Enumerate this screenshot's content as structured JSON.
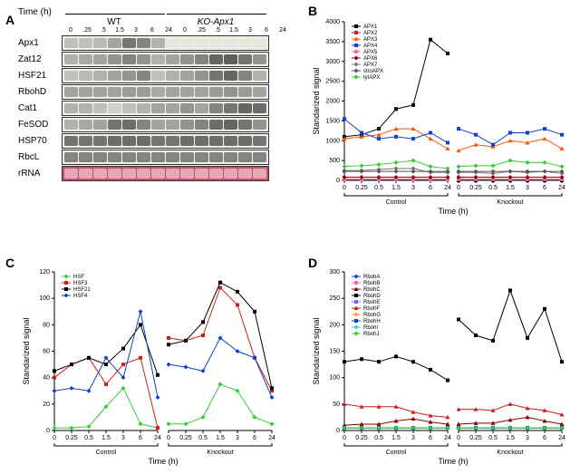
{
  "panelA": {
    "label": "A",
    "time_header": "Time (h)",
    "groups": [
      "WT",
      "KO-Apx1"
    ],
    "time_points": [
      "0",
      ".25",
      ".5",
      "1.5",
      "3",
      "6",
      "24",
      "0",
      ".25",
      ".5",
      "1.5",
      "3",
      "6",
      "24"
    ],
    "genes": [
      {
        "name": "Apx1",
        "og": [
          0.3,
          0.3,
          0.35,
          0.5,
          0.8,
          0.7,
          0.4,
          0.05,
          0.05,
          0.05,
          0.05,
          0.05,
          0.05,
          0.05
        ]
      },
      {
        "name": "Zat12",
        "og": [
          0.4,
          0.45,
          0.5,
          0.6,
          0.7,
          0.6,
          0.4,
          0.5,
          0.6,
          0.7,
          0.9,
          0.95,
          0.8,
          0.6
        ]
      },
      {
        "name": "HSF21",
        "og": [
          0.3,
          0.35,
          0.4,
          0.5,
          0.6,
          0.7,
          0.3,
          0.4,
          0.5,
          0.6,
          0.8,
          0.9,
          0.7,
          0.4
        ]
      },
      {
        "name": "RbohD",
        "og": [
          0.5,
          0.5,
          0.5,
          0.5,
          0.55,
          0.55,
          0.45,
          0.5,
          0.5,
          0.5,
          0.55,
          0.6,
          0.55,
          0.5
        ]
      },
      {
        "name": "Cat1",
        "og": [
          0.4,
          0.4,
          0.3,
          0.2,
          0.3,
          0.4,
          0.5,
          0.5,
          0.6,
          0.5,
          0.7,
          0.8,
          0.9,
          0.85
        ]
      },
      {
        "name": "FeSOD",
        "og": [
          0.4,
          0.45,
          0.5,
          0.8,
          0.85,
          0.7,
          0.5,
          0.5,
          0.6,
          0.7,
          0.85,
          0.9,
          0.8,
          0.6
        ]
      },
      {
        "name": "HSP70",
        "og": [
          0.8,
          0.8,
          0.8,
          0.85,
          0.85,
          0.85,
          0.8,
          0.8,
          0.85,
          0.85,
          0.85,
          0.85,
          0.85,
          0.8
        ]
      },
      {
        "name": "RbcL",
        "og": [
          0.7,
          0.7,
          0.7,
          0.7,
          0.7,
          0.7,
          0.7,
          0.7,
          0.7,
          0.7,
          0.7,
          0.7,
          0.7,
          0.7
        ]
      },
      {
        "name": "rRNA",
        "og": [
          0.7,
          0.7,
          0.7,
          0.7,
          0.7,
          0.7,
          0.7,
          0.7,
          0.7,
          0.7,
          0.7,
          0.7,
          0.7,
          0.7
        ],
        "rrna": true
      }
    ]
  },
  "panelB": {
    "label": "B",
    "ylabel": "Standarized signal",
    "xlabel": "Time (h)",
    "ylim": [
      0,
      4000
    ],
    "ytick_step": 500,
    "x_categories": [
      "0",
      "0.25",
      "0.5",
      "1.5",
      "3",
      "6",
      "24"
    ],
    "groups": [
      "Control",
      "Knockout"
    ],
    "series": [
      {
        "name": "APX1",
        "color": "#000000",
        "marker": "square",
        "control": [
          1100,
          1150,
          1300,
          1800,
          1900,
          3550,
          3200
        ],
        "knockout": [
          0,
          0,
          0,
          0,
          0,
          0,
          0
        ]
      },
      {
        "name": "APX2",
        "color": "#cc2020",
        "marker": "square",
        "control": [
          30,
          30,
          30,
          30,
          30,
          30,
          30
        ],
        "knockout": [
          30,
          30,
          30,
          30,
          30,
          30,
          30
        ]
      },
      {
        "name": "APX3",
        "color": "#ff5500",
        "marker": "triangle",
        "control": [
          1050,
          1100,
          1150,
          1300,
          1300,
          1050,
          800
        ],
        "knockout": [
          750,
          900,
          850,
          1000,
          950,
          1050,
          800
        ]
      },
      {
        "name": "APX4",
        "color": "#1040cc",
        "marker": "square",
        "control": [
          1550,
          1200,
          1050,
          1100,
          1050,
          1200,
          950
        ],
        "knockout": [
          1300,
          1150,
          900,
          1200,
          1200,
          1300,
          1150
        ]
      },
      {
        "name": "APX5",
        "color": "#ff66aa",
        "marker": "square",
        "control": [
          30,
          30,
          30,
          30,
          30,
          30,
          30
        ],
        "knockout": [
          30,
          30,
          30,
          30,
          30,
          30,
          30
        ]
      },
      {
        "name": "APX6",
        "color": "#880000",
        "marker": "diamond",
        "control": [
          80,
          80,
          80,
          80,
          80,
          80,
          80
        ],
        "knockout": [
          80,
          80,
          80,
          80,
          80,
          80,
          80
        ]
      },
      {
        "name": "APX7",
        "color": "#777777",
        "marker": "diamond",
        "control": [
          250,
          250,
          275,
          300,
          300,
          200,
          200
        ],
        "knockout": [
          200,
          200,
          175,
          225,
          200,
          225,
          175
        ]
      },
      {
        "name": "stroAPX",
        "color": "#555555",
        "marker": "diamond",
        "control": [
          225,
          225,
          225,
          225,
          225,
          225,
          225
        ],
        "knockout": [
          225,
          225,
          225,
          225,
          225,
          225,
          225
        ]
      },
      {
        "name": "tyIAPX",
        "color": "#33cc33",
        "marker": "diamond",
        "control": [
          350,
          370,
          400,
          450,
          500,
          350,
          300
        ],
        "knockout": [
          350,
          370,
          370,
          500,
          450,
          450,
          350
        ]
      }
    ]
  },
  "panelC": {
    "label": "C",
    "ylabel": "Standarized signal",
    "xlabel": "Time (h)",
    "ylim": [
      0,
      120
    ],
    "ytick_step": 20,
    "x_categories": [
      "0",
      "0.25",
      "0.5",
      "1.5",
      "3",
      "6",
      "24"
    ],
    "groups": [
      "Control",
      "Knockout"
    ],
    "series": [
      {
        "name": "HSF",
        "color": "#33cc33",
        "marker": "diamond",
        "control": [
          2,
          2,
          3,
          18,
          32,
          5,
          2
        ],
        "knockout": [
          5,
          5,
          10,
          35,
          30,
          10,
          5
        ]
      },
      {
        "name": "HSF3",
        "color": "#cc2020",
        "marker": "square",
        "control": [
          40,
          50,
          55,
          35,
          50,
          55,
          2
        ],
        "knockout": [
          70,
          68,
          72,
          108,
          95,
          55,
          30
        ]
      },
      {
        "name": "HSF21",
        "color": "#000000",
        "marker": "square",
        "control": [
          45,
          50,
          55,
          50,
          62,
          80,
          42
        ],
        "knockout": [
          65,
          68,
          82,
          112,
          105,
          90,
          32
        ]
      },
      {
        "name": "HSF4",
        "color": "#1040cc",
        "marker": "diamond",
        "control": [
          30,
          32,
          30,
          55,
          40,
          90,
          25
        ],
        "knockout": [
          50,
          48,
          45,
          70,
          60,
          55,
          25
        ]
      }
    ]
  },
  "panelD": {
    "label": "D",
    "ylabel": "Standarized signal",
    "xlabel": "Time (h)",
    "ylim": [
      0,
      300
    ],
    "ytick_step": 50,
    "x_categories": [
      "0",
      "0.25",
      "0.5",
      "1.5",
      "3",
      "6",
      "24"
    ],
    "groups": [
      "Control",
      "Knockout"
    ],
    "series": [
      {
        "name": "RbohA",
        "color": "#1040cc",
        "marker": "diamond",
        "control": [
          5,
          5,
          5,
          5,
          5,
          5,
          5
        ],
        "knockout": [
          5,
          5,
          5,
          5,
          5,
          5,
          5
        ]
      },
      {
        "name": "RbohB",
        "color": "#ff66cc",
        "marker": "square",
        "control": [
          5,
          5,
          5,
          5,
          5,
          5,
          5
        ],
        "knockout": [
          5,
          5,
          5,
          5,
          5,
          5,
          5
        ]
      },
      {
        "name": "RbohC",
        "color": "#880000",
        "marker": "triangle",
        "control": [
          10,
          12,
          12,
          18,
          22,
          16,
          12
        ],
        "knockout": [
          12,
          14,
          14,
          20,
          25,
          18,
          12
        ]
      },
      {
        "name": "RbohD",
        "color": "#000000",
        "marker": "square",
        "control": [
          130,
          135,
          130,
          140,
          130,
          115,
          95
        ],
        "knockout": [
          210,
          180,
          170,
          265,
          175,
          230,
          130
        ]
      },
      {
        "name": "RbohE",
        "color": "#7070ee",
        "marker": "square",
        "control": [
          5,
          5,
          5,
          5,
          5,
          5,
          5
        ],
        "knockout": [
          5,
          5,
          5,
          5,
          5,
          5,
          5
        ]
      },
      {
        "name": "RbohF",
        "color": "#cc2020",
        "marker": "triangle",
        "control": [
          50,
          45,
          45,
          45,
          35,
          28,
          25
        ],
        "knockout": [
          40,
          40,
          38,
          50,
          42,
          38,
          30
        ]
      },
      {
        "name": "RbohG",
        "color": "#ff9933",
        "marker": "diamond",
        "control": [
          5,
          5,
          5,
          5,
          5,
          5,
          5
        ],
        "knockout": [
          5,
          5,
          5,
          5,
          5,
          5,
          5
        ]
      },
      {
        "name": "RbohH",
        "color": "#1040cc",
        "marker": "square",
        "control": [
          5,
          5,
          5,
          5,
          5,
          5,
          5
        ],
        "knockout": [
          5,
          5,
          5,
          5,
          5,
          5,
          5
        ]
      },
      {
        "name": "RbohI",
        "color": "#33cccc",
        "marker": "diamond",
        "control": [
          5,
          5,
          5,
          5,
          5,
          5,
          5
        ],
        "knockout": [
          5,
          5,
          5,
          5,
          5,
          5,
          5
        ]
      },
      {
        "name": "RbohJ",
        "color": "#33cc33",
        "marker": "diamond",
        "control": [
          5,
          5,
          5,
          5,
          5,
          5,
          5
        ],
        "knockout": [
          5,
          5,
          5,
          5,
          5,
          5,
          5
        ]
      }
    ]
  }
}
